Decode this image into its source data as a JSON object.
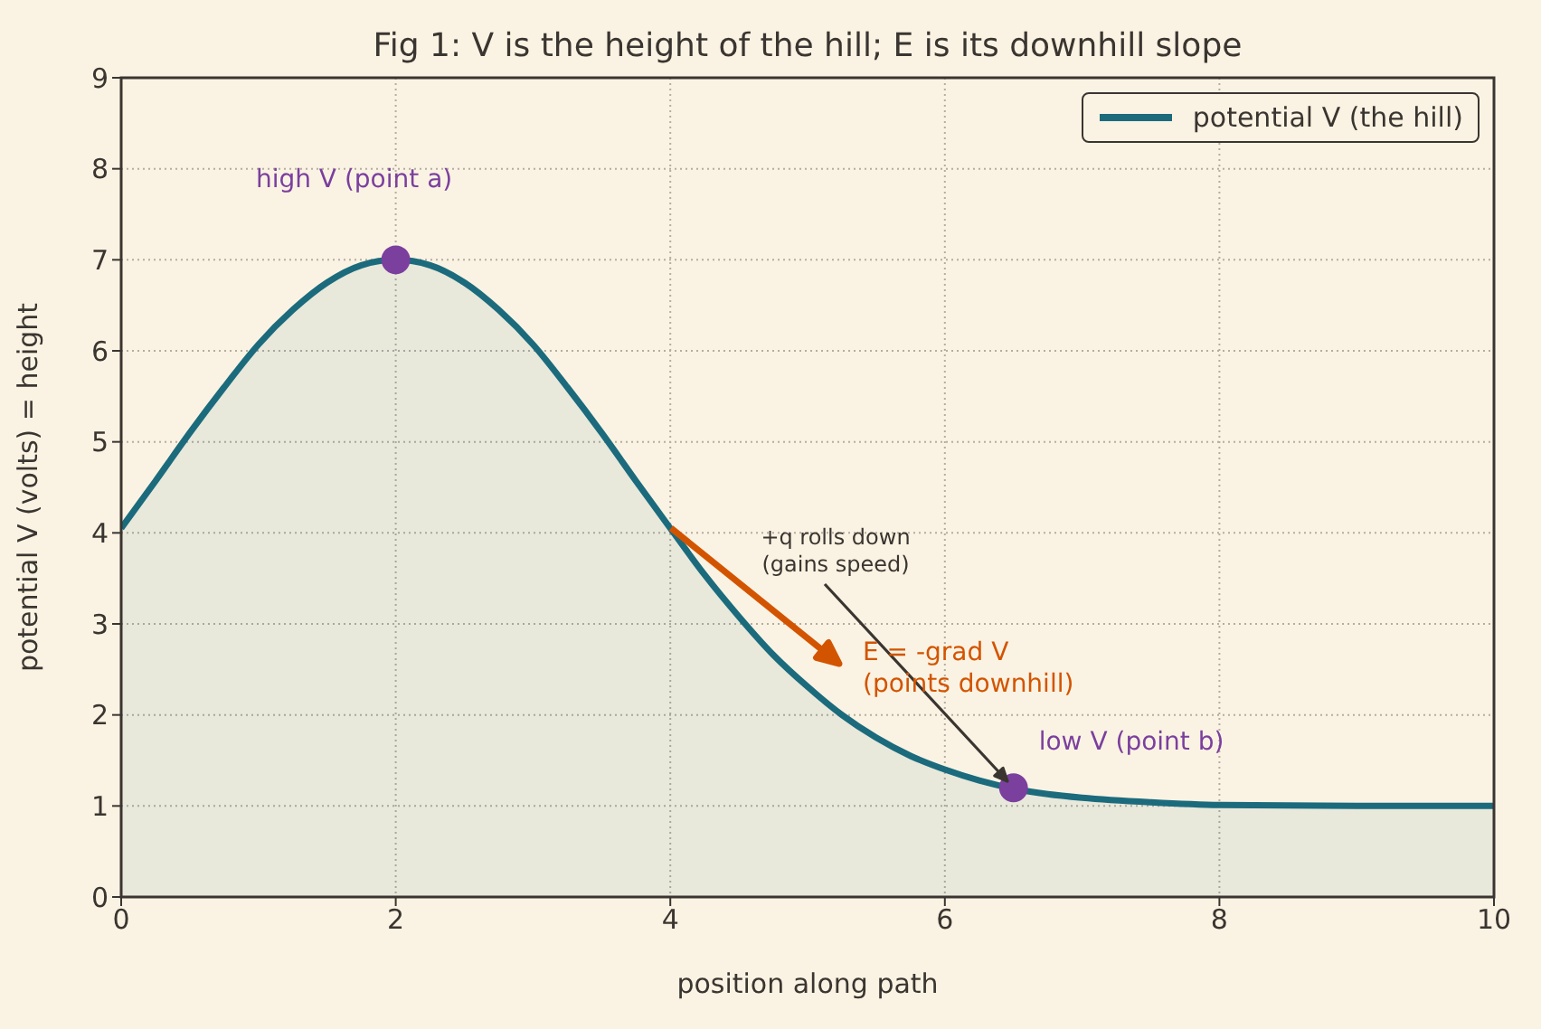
{
  "chart_data": {
    "type": "area",
    "title": "Fig 1: V is the height of the hill; E is its downhill slope",
    "xlabel": "position along path",
    "ylabel": "potential  V  (volts) = height",
    "series": [
      {
        "name": "potential V (the hill)",
        "color": "#1b6b7d",
        "x": [
          0,
          0.25,
          0.5,
          0.75,
          1,
          1.25,
          1.5,
          1.75,
          2,
          2.25,
          2.5,
          2.75,
          3,
          3.25,
          3.5,
          3.75,
          4,
          4.25,
          4.5,
          4.75,
          5,
          5.25,
          5.5,
          5.75,
          6,
          6.25,
          6.5,
          6.75,
          7,
          7.5,
          8,
          9,
          10
        ],
        "values": [
          4.05,
          4.57,
          5.1,
          5.6,
          6.07,
          6.45,
          6.75,
          6.94,
          7,
          6.94,
          6.75,
          6.45,
          6.07,
          5.6,
          5.1,
          4.57,
          4.05,
          3.54,
          3.08,
          2.66,
          2.31,
          2.0,
          1.75,
          1.55,
          1.4,
          1.28,
          1.19,
          1.13,
          1.09,
          1.04,
          1.01,
          1.0,
          1.0
        ]
      },
      {
        "type": "scatter",
        "color": "#7b3f9e",
        "x": [
          2,
          6.5
        ],
        "values": [
          7,
          1.2
        ],
        "marker": "circle"
      }
    ],
    "annotations": [
      {
        "text": "high V (point a)",
        "x": 2,
        "y": 7
      },
      {
        "text": "low V (point b)",
        "x": 6.5,
        "y": 1.2
      },
      "+q rolls down\n(gains speed)",
      "E = -grad V\n(points downhill)"
    ],
    "xlim": [
      0,
      10
    ],
    "xticks": [
      0,
      2,
      4,
      6,
      8,
      10
    ],
    "ylim": [
      0,
      9
    ],
    "yticks": [
      0,
      1,
      2,
      3,
      4,
      5,
      6,
      7,
      8,
      9
    ],
    "grid": true,
    "legend": "top right",
    "marker": "none",
    "line_style": "solid"
  }
}
